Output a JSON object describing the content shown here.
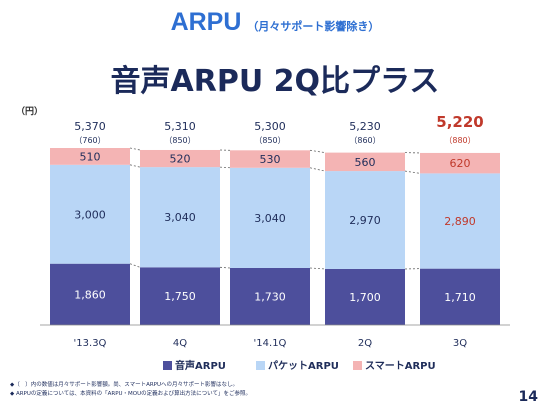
{
  "header": {
    "title": "ARPU",
    "title_note": "（月々サポート影響除き）",
    "headline": "音声ARPU 2Q比プラス",
    "unit": "（円）"
  },
  "colors": {
    "voice": "#4d4f9c",
    "packet": "#b9d6f6",
    "smart": "#f4b4b4",
    "highlight": "#c0392b",
    "text": "#1f2d5a"
  },
  "chart_data": {
    "type": "bar",
    "stacked": true,
    "categories": [
      "'13.3Q",
      "4Q",
      "'14.1Q",
      "2Q",
      "3Q"
    ],
    "series": [
      {
        "name": "音声ARPU",
        "values": [
          1860,
          1750,
          1730,
          1700,
          1710
        ]
      },
      {
        "name": "パケットARPU",
        "values": [
          3000,
          3040,
          3040,
          2970,
          2890
        ]
      },
      {
        "name": "スマートARPU",
        "values": [
          510,
          520,
          530,
          560,
          620
        ]
      }
    ],
    "totals": [
      "5,370",
      "5,310",
      "5,300",
      "5,230",
      "5,220"
    ],
    "total_notes": [
      "（760）",
      "（850）",
      "（850）",
      "（860）",
      "（880）"
    ],
    "highlight_index": 4,
    "ylim": [
      0,
      5370
    ]
  },
  "footnotes": [
    "◆（　）内の数値は月々サポート影響額。尚、スマートARPUへの月々サポート影響はなし。",
    "◆ ARPUの定義については、本資料の「ARPU・MOUの定義および算出方法について」をご参照。"
  ],
  "page_number": "14"
}
